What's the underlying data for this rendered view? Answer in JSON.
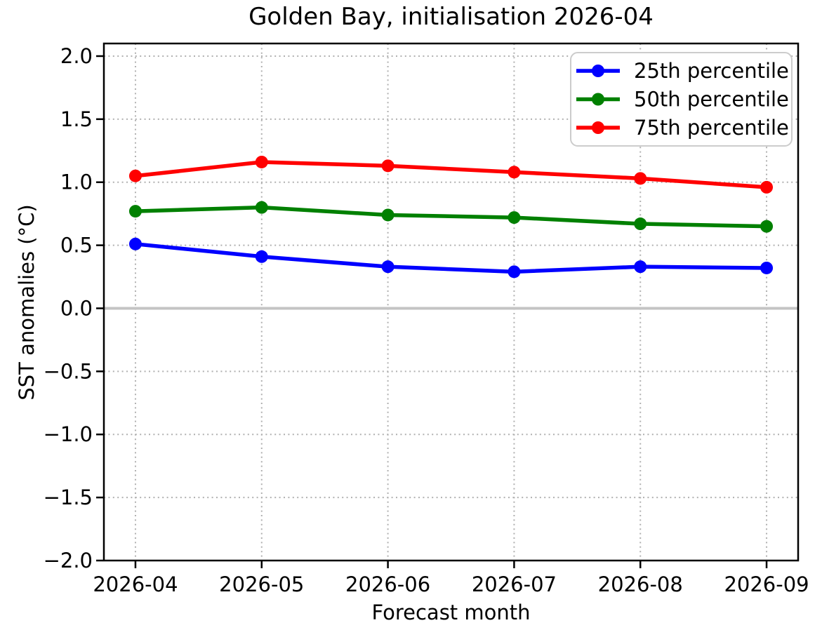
{
  "figure": {
    "title": "Golden Bay, initialisation 2026-04",
    "xlabel": "Forecast month",
    "ylabel": "SST anomalies (°C)"
  },
  "chart_data": {
    "type": "line",
    "title": "Golden Bay, initialisation 2026-04",
    "xlabel": "Forecast month",
    "ylabel": "SST anomalies (°C)",
    "categories": [
      "2026-04",
      "2026-05",
      "2026-06",
      "2026-07",
      "2026-08",
      "2026-09"
    ],
    "series": [
      {
        "name": "25th percentile",
        "color": "#0000ff",
        "values": [
          0.51,
          0.41,
          0.33,
          0.29,
          0.33,
          0.32
        ]
      },
      {
        "name": "50th percentile",
        "color": "#008000",
        "values": [
          0.77,
          0.8,
          0.74,
          0.72,
          0.67,
          0.65
        ]
      },
      {
        "name": "75th percentile",
        "color": "#ff0000",
        "values": [
          1.05,
          1.16,
          1.13,
          1.08,
          1.03,
          0.96
        ]
      }
    ],
    "ylim": [
      -2.0,
      2.1
    ],
    "y_ticks": [
      -2.0,
      -1.5,
      -1.0,
      -0.5,
      0.0,
      0.5,
      1.0,
      1.5,
      2.0
    ],
    "y_tick_labels": [
      "−2.0",
      "−1.5",
      "−1.0",
      "−0.5",
      "0.0",
      "0.5",
      "1.0",
      "1.5",
      "2.0"
    ],
    "grid": true,
    "grid_style": "dotted",
    "marker": "circle",
    "zero_line": {
      "value": 0.0,
      "color": "#c4c4c4"
    },
    "legend": {
      "position": "upper right"
    }
  },
  "colors": {
    "grid": "#b0b0b0",
    "zero_line": "#c4c4c4",
    "spine": "#000000",
    "legend_border": "#cccccc",
    "background": "#ffffff"
  }
}
